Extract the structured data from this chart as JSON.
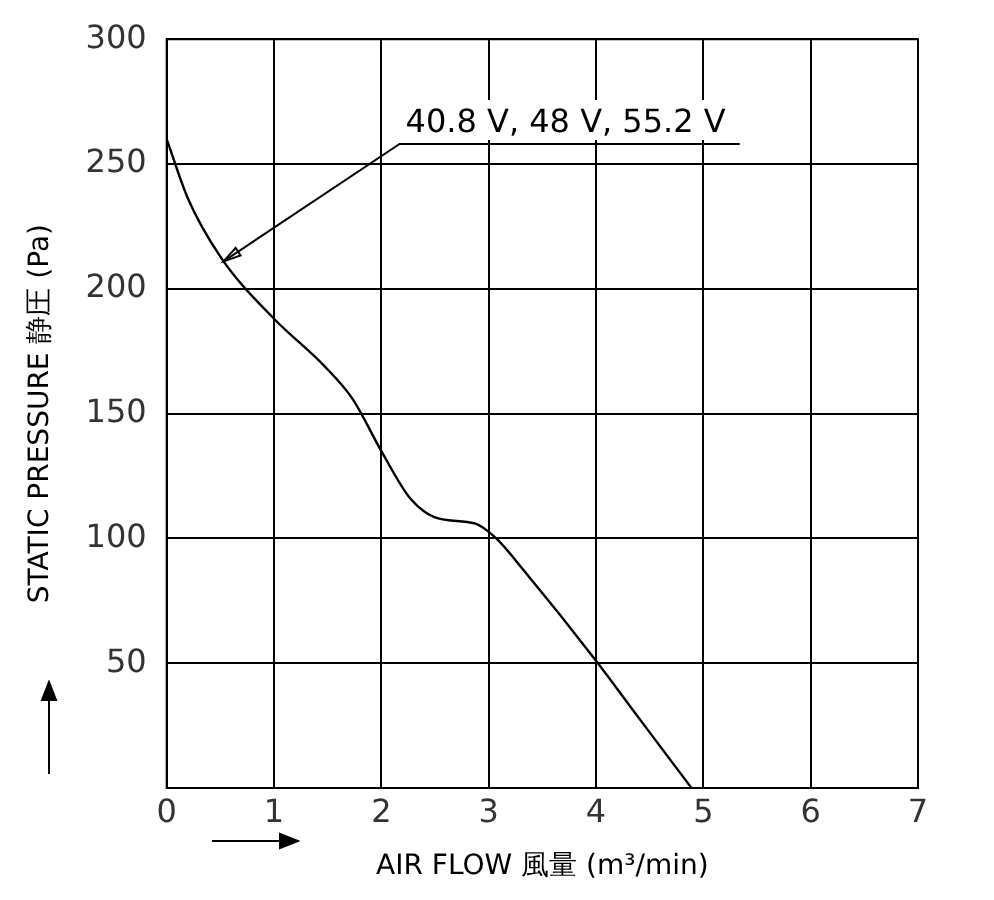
{
  "chart_data": {
    "type": "line",
    "xlabel": "AIR FLOW 風量 (m³/min)",
    "ylabel": "STATIC PRESSURE 静圧 (Pa)",
    "x": [
      0,
      0.2,
      0.53,
      1.0,
      1.47,
      1.73,
      2.0,
      2.27,
      2.53,
      2.87,
      3.07,
      3.33,
      4.0,
      4.4,
      4.89
    ],
    "series": [
      {
        "color": "#000000",
        "values": [
          260,
          236,
          211,
          188,
          169,
          156,
          135,
          116,
          108,
          106,
          100,
          87,
          51,
          28,
          0
        ]
      }
    ],
    "xlim": [
      0,
      7
    ],
    "xticks": [
      0,
      1,
      2,
      3,
      4,
      5,
      6,
      7
    ],
    "ylim": [
      0,
      300
    ],
    "yticks": [
      {
        "value": 0,
        "label": null
      },
      50,
      100,
      150,
      200,
      250,
      300
    ],
    "grid": true,
    "legend": false,
    "marker": "none",
    "line_style": "solid",
    "annotations": [
      {
        "text": "40.8 V, 48 V, 55.2 V",
        "x": 0.53,
        "y": 211
      }
    ]
  }
}
